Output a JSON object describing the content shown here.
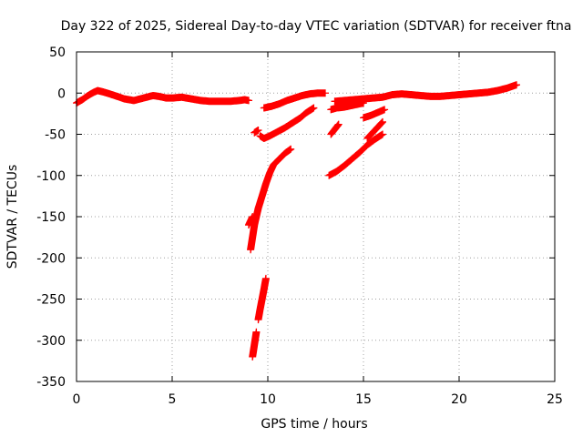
{
  "chart_data": {
    "type": "scatter",
    "title": "Day 322 of 2025, Sidereal Day-to-day VTEC variation (SDTVAR) for receiver ftna",
    "xlabel": "GPS time / hours",
    "ylabel": "SDTVAR / TECUs",
    "xlim": [
      0,
      25
    ],
    "ylim": [
      -350,
      50
    ],
    "xticks": [
      0,
      5,
      10,
      15,
      20,
      25
    ],
    "yticks": [
      50,
      0,
      -50,
      -100,
      -150,
      -200,
      -250,
      -300,
      -350
    ],
    "grid": true,
    "legend": "none",
    "series": [
      {
        "color": "#ff0000",
        "marker": "plus",
        "segments": [
          [
            [
              0.0,
              -12
            ],
            [
              0.3,
              -8
            ],
            [
              0.6,
              -3
            ],
            [
              0.9,
              1
            ],
            [
              1.1,
              3
            ],
            [
              1.3,
              2
            ],
            [
              1.6,
              0
            ],
            [
              2.0,
              -3
            ],
            [
              2.5,
              -7
            ],
            [
              3.0,
              -9
            ],
            [
              3.5,
              -6
            ],
            [
              4.0,
              -3
            ],
            [
              4.3,
              -4
            ],
            [
              4.7,
              -6
            ],
            [
              5.0,
              -6
            ],
            [
              5.5,
              -5
            ],
            [
              6.0,
              -7
            ],
            [
              6.5,
              -9
            ],
            [
              7.0,
              -10
            ],
            [
              7.5,
              -10
            ],
            [
              8.0,
              -10
            ],
            [
              8.5,
              -9
            ],
            [
              8.8,
              -8
            ],
            [
              9.0,
              -9
            ]
          ],
          [
            [
              9.3,
              -48
            ],
            [
              9.5,
              -45
            ]
          ],
          [
            [
              9.6,
              -52
            ],
            [
              9.8,
              -55
            ],
            [
              10.1,
              -52
            ],
            [
              10.5,
              -47
            ],
            [
              10.9,
              -42
            ],
            [
              11.3,
              -36
            ],
            [
              11.7,
              -30
            ],
            [
              12.0,
              -24
            ],
            [
              12.4,
              -18
            ]
          ],
          [
            [
              9.8,
              -18
            ],
            [
              10.2,
              -16
            ],
            [
              10.6,
              -13
            ],
            [
              11.0,
              -9
            ],
            [
              11.4,
              -6
            ],
            [
              11.8,
              -3
            ],
            [
              12.2,
              -1
            ],
            [
              12.6,
              0
            ],
            [
              13.0,
              0
            ]
          ],
          [
            [
              13.3,
              -20
            ],
            [
              13.6,
              -18
            ],
            [
              14.0,
              -17
            ],
            [
              14.4,
              -15
            ],
            [
              14.8,
              -13
            ],
            [
              15.0,
              -12
            ]
          ],
          [
            [
              13.3,
              -50
            ],
            [
              13.5,
              -44
            ],
            [
              13.7,
              -38
            ]
          ],
          [
            [
              13.5,
              -10
            ],
            [
              14.0,
              -9
            ],
            [
              14.5,
              -8
            ],
            [
              15.0,
              -7
            ],
            [
              15.5,
              -6
            ],
            [
              16.0,
              -5
            ],
            [
              16.5,
              -2
            ],
            [
              17.0,
              -1
            ],
            [
              17.5,
              -2
            ],
            [
              18.0,
              -3
            ],
            [
              18.5,
              -4
            ],
            [
              19.0,
              -4
            ],
            [
              19.5,
              -3
            ],
            [
              20.0,
              -2
            ],
            [
              20.5,
              -1
            ],
            [
              21.0,
              0
            ],
            [
              21.5,
              1
            ],
            [
              22.0,
              3
            ],
            [
              22.5,
              6
            ],
            [
              23.0,
              10
            ]
          ],
          [
            [
              13.2,
              -100
            ],
            [
              13.6,
              -95
            ],
            [
              14.0,
              -88
            ],
            [
              14.4,
              -80
            ],
            [
              14.8,
              -72
            ],
            [
              15.2,
              -63
            ],
            [
              15.6,
              -56
            ],
            [
              16.0,
              -50
            ]
          ],
          [
            [
              15.0,
              -30
            ],
            [
              15.4,
              -27
            ],
            [
              15.8,
              -23
            ],
            [
              16.1,
              -20
            ]
          ],
          [
            [
              15.2,
              -55
            ],
            [
              15.6,
              -45
            ],
            [
              16.0,
              -35
            ]
          ],
          [
            [
              9.1,
              -190
            ],
            [
              9.2,
              -175
            ],
            [
              9.3,
              -160
            ],
            [
              9.5,
              -140
            ],
            [
              9.7,
              -125
            ],
            [
              9.9,
              -110
            ],
            [
              10.1,
              -97
            ],
            [
              10.3,
              -87
            ],
            [
              10.6,
              -80
            ],
            [
              10.9,
              -73
            ],
            [
              11.2,
              -68
            ]
          ],
          [
            [
              9.0,
              -160
            ],
            [
              9.2,
              -150
            ]
          ],
          [
            [
              9.2,
              -320
            ],
            [
              9.3,
              -305
            ],
            [
              9.4,
              -290
            ]
          ],
          [
            [
              9.5,
              -275
            ],
            [
              9.6,
              -262
            ],
            [
              9.7,
              -250
            ],
            [
              9.8,
              -238
            ],
            [
              9.9,
              -225
            ]
          ]
        ]
      }
    ]
  }
}
